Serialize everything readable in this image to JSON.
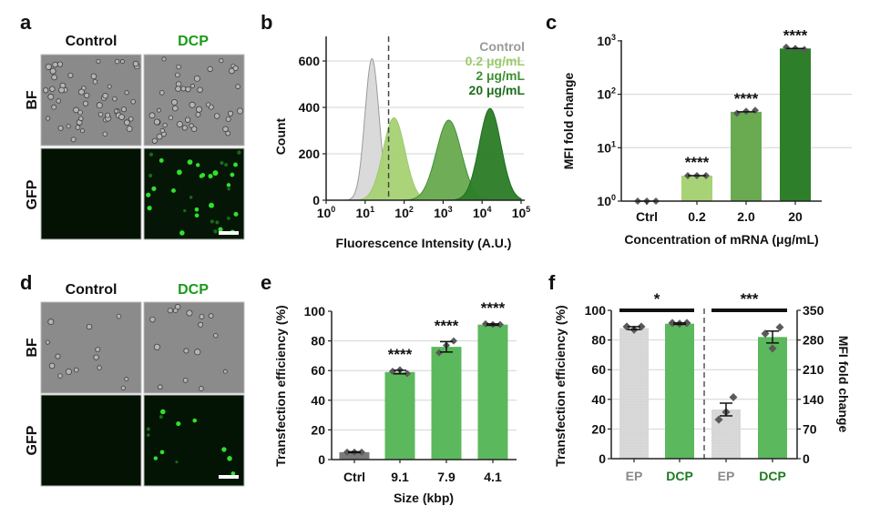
{
  "figure": {
    "panel_letters": [
      "a",
      "b",
      "c",
      "d",
      "e",
      "f"
    ]
  },
  "microscopy": [
    {
      "panel": "a",
      "columns": [
        "Control",
        "DCP"
      ],
      "rows": [
        "BF",
        "GFP"
      ],
      "column_colors": [
        "#111111",
        "#1a9a1a"
      ]
    },
    {
      "panel": "d",
      "columns": [
        "Control",
        "DCP"
      ],
      "rows": [
        "BF",
        "GFP"
      ],
      "column_colors": [
        "#111111",
        "#1a9a1a"
      ]
    }
  ],
  "chart_data": [
    {
      "panel": "b",
      "type": "area",
      "title": "",
      "xlabel": "Fluorescence Intensity (A.U.)",
      "ylabel": "Count",
      "xscale": "log",
      "xlim": [
        1,
        100000
      ],
      "ylim": [
        0,
        700
      ],
      "x_ticks": [
        {
          "base": "10",
          "exp": "0"
        },
        {
          "base": "10",
          "exp": "1"
        },
        {
          "base": "10",
          "exp": "2"
        },
        {
          "base": "10",
          "exp": "3"
        },
        {
          "base": "10",
          "exp": "4"
        },
        {
          "base": "10",
          "exp": "5"
        }
      ],
      "y_ticks": [
        "0",
        "200",
        "400",
        "600"
      ],
      "y_tick_values": [
        0,
        200,
        400,
        600
      ],
      "gate_line_x": 40,
      "grid": true,
      "legend_position": "top-right",
      "series": [
        {
          "name": "Control",
          "color": "#9a9a9a",
          "fill": "#d8d8d8",
          "peak_x": 15,
          "peak_count": 610,
          "log_sigma": 0.18
        },
        {
          "name": "0.2 μg/mL",
          "color": "#9acb6a",
          "fill": "#a8d276",
          "peak_x": 55,
          "peak_count": 355,
          "log_sigma": 0.28
        },
        {
          "name": "2 μg/mL",
          "color": "#3f8f35",
          "fill": "#6aab52",
          "peak_x": 1400,
          "peak_count": 345,
          "log_sigma": 0.32
        },
        {
          "name": "20 μg/mL",
          "color": "#1f6e1f",
          "fill": "#2e7f2a",
          "peak_x": 16000,
          "peak_count": 395,
          "log_sigma": 0.28
        }
      ]
    },
    {
      "panel": "c",
      "type": "bar",
      "title": "",
      "xlabel": "Concentration of mRNA (μg/mL)",
      "ylabel": "MFI fold change",
      "yscale": "log",
      "ylim": [
        1,
        1000
      ],
      "y_ticks": [
        {
          "base": "10",
          "exp": "0"
        },
        {
          "base": "10",
          "exp": "1"
        },
        {
          "base": "10",
          "exp": "2"
        },
        {
          "base": "10",
          "exp": "3"
        }
      ],
      "grid": true,
      "categories": [
        "Ctrl",
        "0.2",
        "2.0",
        "20"
      ],
      "values": [
        1.0,
        3.0,
        47,
        720
      ],
      "points": [
        [
          1.0,
          1.0,
          1.0
        ],
        [
          3.0,
          3.0,
          3.0
        ],
        [
          44,
          48,
          50
        ],
        [
          760,
          720,
          690
        ]
      ],
      "colors": [
        "#ffffff",
        "#a8d276",
        "#6aab52",
        "#2e7f2a"
      ],
      "significance": [
        "",
        "****",
        "****",
        "****"
      ]
    },
    {
      "panel": "e",
      "type": "bar",
      "title": "",
      "xlabel": "Size (kbp)",
      "ylabel": "Transfection  efficiency (%)",
      "ylim": [
        0,
        100
      ],
      "y_ticks": [
        "0",
        "20",
        "40",
        "60",
        "80",
        "100"
      ],
      "y_tick_values": [
        0,
        20,
        40,
        60,
        80,
        100
      ],
      "grid": true,
      "categories": [
        "Ctrl",
        "9.1",
        "7.9",
        "4.1"
      ],
      "values": [
        5,
        59,
        76,
        91
      ],
      "errors": [
        0.3,
        1.2,
        3.5,
        0.5
      ],
      "points": [
        [
          5,
          5,
          5
        ],
        [
          59.5,
          60.5,
          58
        ],
        [
          72,
          77,
          80
        ],
        [
          91.5,
          91,
          91
        ]
      ],
      "colors": [
        "#7a7a7a",
        "#5cb85c",
        "#5cb85c",
        "#5cb85c"
      ],
      "significance": [
        "",
        "****",
        "****",
        "****"
      ]
    },
    {
      "panel": "f",
      "type": "bar",
      "title": "",
      "xlabel": "",
      "ylabel": "Transfection  efficiency (%)",
      "ylabel_right": "MFI fold change",
      "ylim": [
        0,
        100
      ],
      "ylim_right": [
        0,
        350
      ],
      "y_ticks": [
        "0",
        "20",
        "40",
        "60",
        "80",
        "100"
      ],
      "y_tick_values": [
        0,
        20,
        40,
        60,
        80,
        100
      ],
      "y_ticks_right": [
        "0",
        "70",
        "140",
        "210",
        "280",
        "350"
      ],
      "y_tick_values_right": [
        0,
        70,
        140,
        210,
        280,
        350
      ],
      "grid": true,
      "categories": [
        "EP",
        "DCP",
        "EP",
        "DCP"
      ],
      "category_colors": [
        "#8a8a8a",
        "#1e7a1e",
        "#8a8a8a",
        "#1e7a1e"
      ],
      "axis": [
        "left",
        "left",
        "right",
        "right"
      ],
      "values": [
        88,
        91,
        116,
        287
      ],
      "errors": [
        1,
        0.5,
        15,
        14
      ],
      "points": [
        [
          89,
          87,
          89
        ],
        [
          91.5,
          91,
          91.5
        ],
        [
          92,
          110,
          145
        ],
        [
          295,
          260,
          310
        ]
      ],
      "colors": [
        "#d9d9d9",
        "#5cb85c",
        "#d9d9d9",
        "#5cb85c"
      ],
      "brackets": [
        {
          "label": "*",
          "between": [
            0,
            1
          ]
        },
        {
          "label": "***",
          "between": [
            2,
            3
          ]
        }
      ]
    }
  ]
}
